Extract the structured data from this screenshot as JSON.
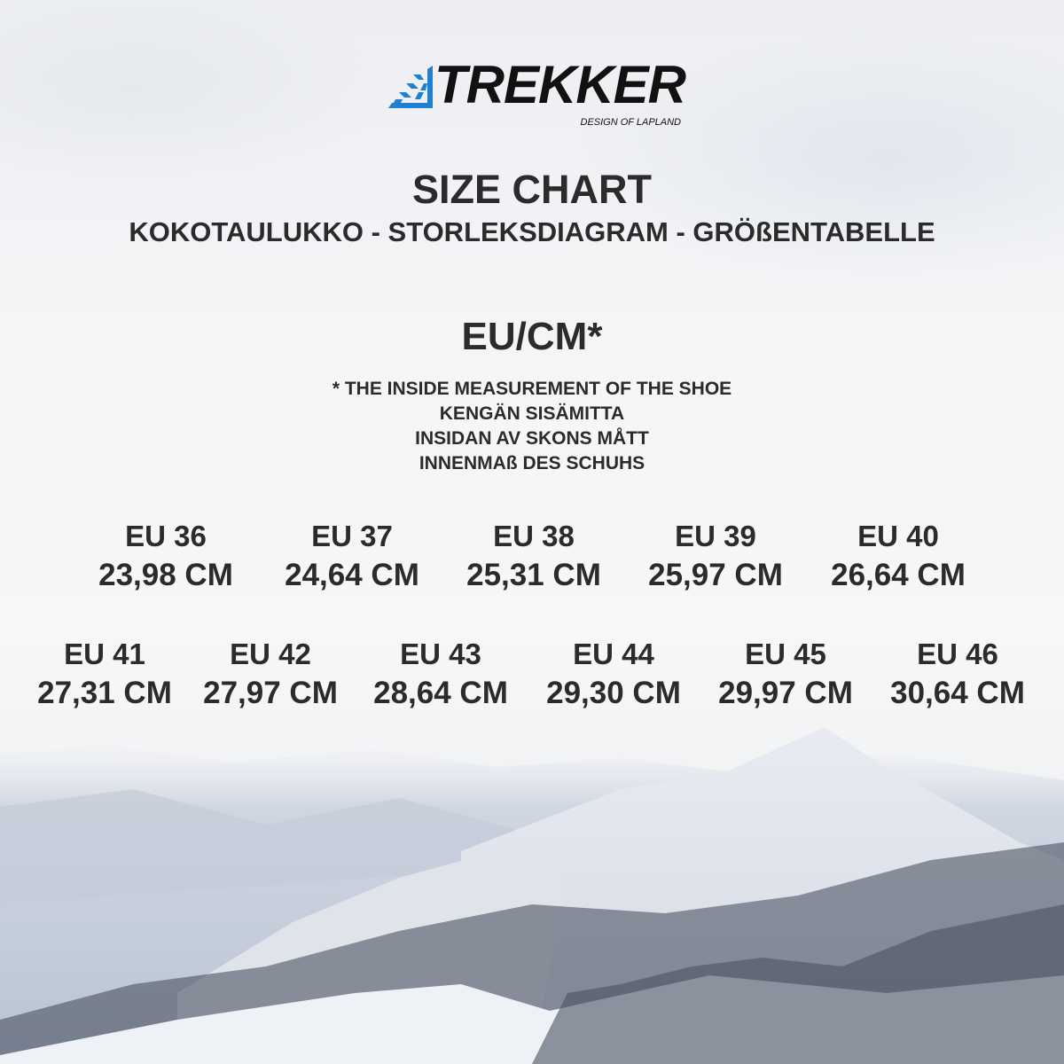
{
  "brand": {
    "name": "TREKKER",
    "tagline": "DESIGN OF LAPLAND",
    "logo_icon": "snowflake-icon",
    "accent": "#1f7fd0"
  },
  "title": "SIZE CHART",
  "subtitle": "KOKOTAULUKKO - STORLEKSDIAGRAM -  GRÖßENTABELLE",
  "unit_heading": "EU/CM*",
  "notes": [
    "* THE INSIDE MEASUREMENT OF THE SHOE",
    "KENGÄN SISÄMITTA",
    "INSIDAN AV SKONS MÅTT",
    "INNENMAß DES SCHUHS"
  ],
  "sizes_row1": [
    {
      "eu": "EU 36",
      "cm": "23,98 CM"
    },
    {
      "eu": "EU 37",
      "cm": "24,64 CM"
    },
    {
      "eu": "EU 38",
      "cm": "25,31 CM"
    },
    {
      "eu": "EU 39",
      "cm": "25,97 CM"
    },
    {
      "eu": "EU 40",
      "cm": "26,64 CM"
    }
  ],
  "sizes_row2": [
    {
      "eu": "EU 41",
      "cm": "27,31 CM"
    },
    {
      "eu": "EU 42",
      "cm": "27,97 CM"
    },
    {
      "eu": "EU 43",
      "cm": "28,64 CM"
    },
    {
      "eu": "EU 44",
      "cm": "29,30 CM"
    },
    {
      "eu": "EU 45",
      "cm": "29,97 CM"
    },
    {
      "eu": "EU 46",
      "cm": "30,64 CM"
    }
  ]
}
